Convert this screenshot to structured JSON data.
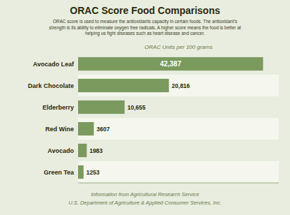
{
  "chart_data": {
    "type": "bar",
    "orientation": "horizontal",
    "title": "ORAC Score Food Comparisons",
    "subtitle": "ORAC score is used to measure the antioxidants capacity in certain foods. The antioxidant’s\nstrength is its ability to eliminate oxygen free radicals. A higher score means the food is better at\nhelping us fight diseases such as heart disease and cancer.",
    "xlabel": "ORAC Units per 100 grams",
    "annotations": [
      "Information from Agricultural Research Service",
      "U.S. Department of Agriculture & Applied Consumer Services, Inc."
    ],
    "categories": [
      "Avocado Leaf",
      "Dark Chocolate",
      "Elderberry",
      "Red Wine",
      "Avocado",
      "Green Tea"
    ],
    "values": [
      42387,
      20816,
      10655,
      3607,
      1983,
      1253
    ],
    "value_labels": [
      "42,387",
      "20,816",
      "10,655",
      "3607",
      "1983",
      "1253"
    ],
    "color": "#7a9a5e",
    "xlim": [
      0,
      46000
    ],
    "tick_labels": false,
    "data_labels": true,
    "grid": false
  }
}
